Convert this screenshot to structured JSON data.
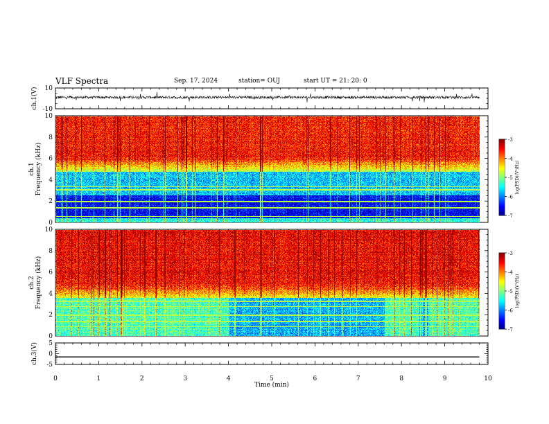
{
  "header": {
    "title": "VLF Spectra",
    "date": "Sep. 17, 2024",
    "station": "station= OUJ",
    "start": "start  UT  =   21: 20: 0"
  },
  "chart_data": [
    {
      "type": "line",
      "panel": "waveform-ch1",
      "ylabel": "ch.1(V)",
      "ylim": [
        -10,
        10
      ],
      "y_ticks": [
        "10",
        "-10"
      ],
      "xlim": [
        0,
        10
      ],
      "mean": 1,
      "amplitude": 2,
      "x_end": 9.8,
      "color": "#000000"
    },
    {
      "type": "heatmap",
      "panel": "spectrogram-ch1",
      "ylabel_line1": "ch.1",
      "ylabel_line2": "Frequency  (kHz)",
      "ylim": [
        0,
        10
      ],
      "y_ticks": [
        "0",
        "2",
        "4",
        "6",
        "8",
        "10"
      ],
      "xlim": [
        0,
        10
      ],
      "x_end": 9.8,
      "colorbar": {
        "label": "log(PSD)(V²/Hz)",
        "range": [
          -7,
          -3
        ],
        "ticks": [
          "-3",
          "-4",
          "-5",
          "-6",
          "-7"
        ]
      }
    },
    {
      "type": "heatmap",
      "panel": "spectrogram-ch2",
      "ylabel_line1": "ch.2",
      "ylabel_line2": "Frequency  (kHz)",
      "ylim": [
        0,
        10
      ],
      "y_ticks": [
        "0",
        "2",
        "4",
        "6",
        "8",
        "10"
      ],
      "xlim": [
        0,
        10
      ],
      "x_end": 9.8,
      "colorbar": {
        "label": "log(PSD)(V²/Hz)",
        "range": [
          -7,
          -3
        ],
        "ticks": [
          "-3",
          "-4",
          "-5",
          "-6",
          "-7"
        ]
      }
    },
    {
      "type": "line",
      "panel": "waveform-ch3",
      "ylabel": "ch.3(V)",
      "ylim": [
        -5,
        5
      ],
      "y_ticks": [
        "5",
        "0",
        "-5"
      ],
      "xlim": [
        0,
        10
      ],
      "constant": -1.5,
      "x_end": 9.8,
      "color": "#000000"
    }
  ],
  "xaxis": {
    "label": "Time  (min)",
    "ticks": [
      "0",
      "1",
      "2",
      "3",
      "4",
      "5",
      "6",
      "7",
      "8",
      "9",
      "10"
    ]
  }
}
